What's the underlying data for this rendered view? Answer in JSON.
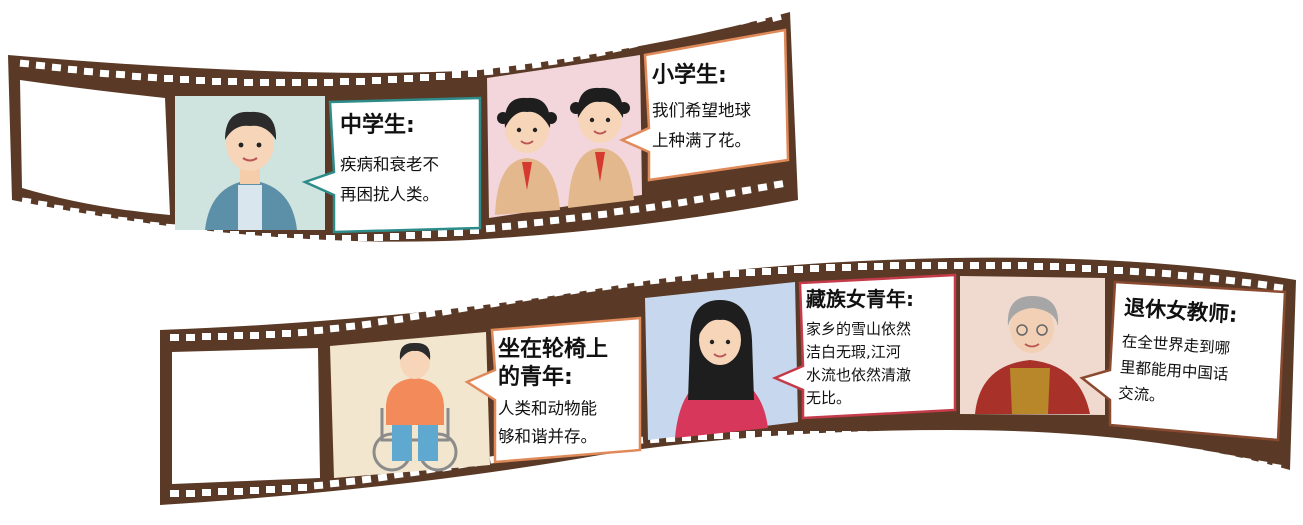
{
  "colors": {
    "film": "#5a3a26",
    "hole": "#ffffff",
    "border_teal": "#2d8c8a",
    "border_orange": "#e08a5a",
    "border_red": "#c43b4a",
    "border_brown": "#8a4a30"
  },
  "strips": [
    {
      "frames": [
        {
          "kind": "blank"
        },
        {
          "kind": "person",
          "icon": "boy-student-icon",
          "bg": "#cfe3df"
        },
        {
          "kind": "bubble",
          "border": "#2d8c8a",
          "title": "中学生:",
          "lines": [
            "疾病和衰老不",
            "再困扰人类。"
          ]
        },
        {
          "kind": "person",
          "icon": "two-girl-students-icon",
          "bg": "#f3d6dc"
        },
        {
          "kind": "bubble",
          "border": "#e08a5a",
          "title": "小学生:",
          "lines": [
            "我们希望地球",
            "上种满了花。"
          ]
        }
      ]
    },
    {
      "frames": [
        {
          "kind": "blank"
        },
        {
          "kind": "person",
          "icon": "wheelchair-youth-icon",
          "bg": "#f2e6cf"
        },
        {
          "kind": "bubble",
          "border": "#e08a5a",
          "title_lines": [
            "坐在轮椅上",
            "的青年:"
          ],
          "lines": [
            "人类和动物能",
            "够和谐并存。"
          ]
        },
        {
          "kind": "person",
          "icon": "tibetan-woman-icon",
          "bg": "#c7d8ee"
        },
        {
          "kind": "bubble",
          "border": "#c43b4a",
          "title": "藏族女青年:",
          "lines": [
            "家乡的雪山依然",
            "洁白无瑕,江河",
            "水流也依然清澈",
            "无比。"
          ]
        },
        {
          "kind": "person",
          "icon": "grandmother-teacher-icon",
          "bg": "#f0d9cf"
        },
        {
          "kind": "bubble",
          "border": "#8a4a30",
          "title": "退休女教师:",
          "lines": [
            "在全世界走到哪",
            "里都能用中国话",
            "交流。"
          ]
        }
      ]
    }
  ]
}
